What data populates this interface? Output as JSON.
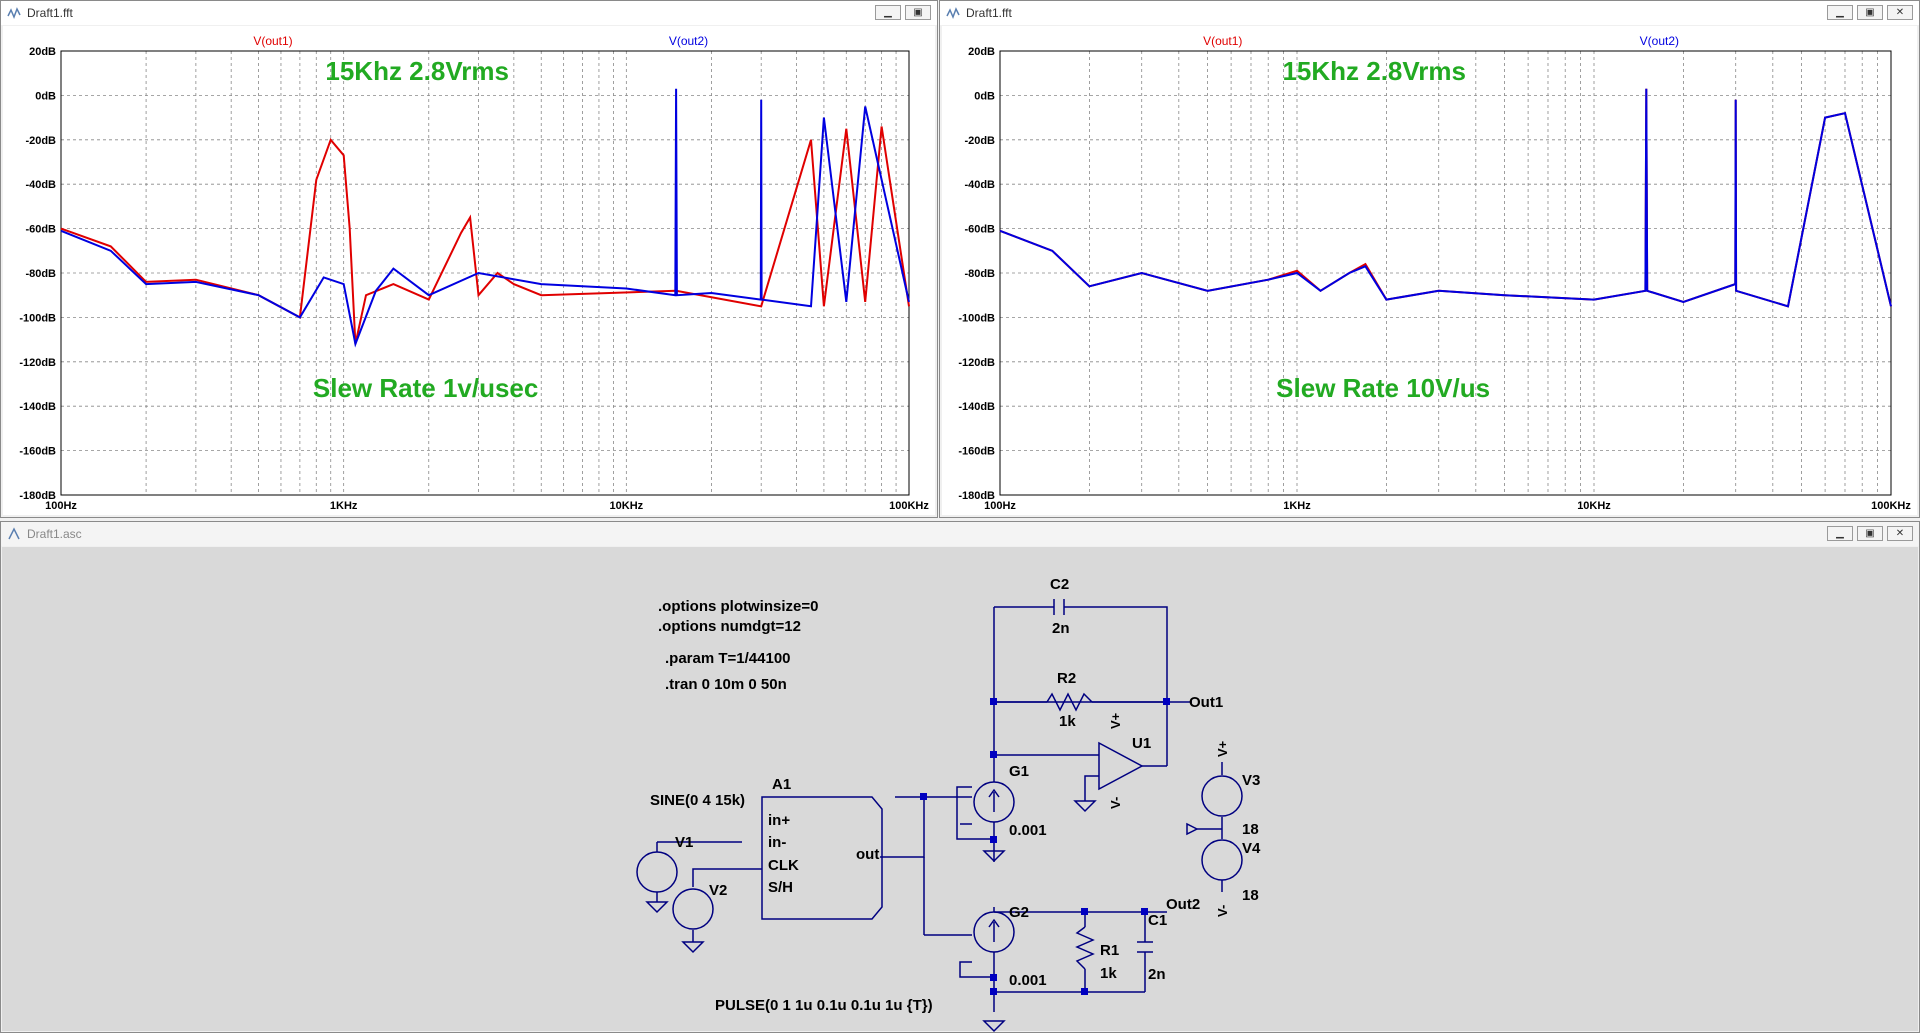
{
  "windows": {
    "fft1": {
      "title": "Draft1.fft"
    },
    "fft2": {
      "title": "Draft1.fft"
    },
    "schematic": {
      "title": "Draft1.asc"
    }
  },
  "window_buttons": {
    "minimize": "▁",
    "restore": "▣",
    "close": "✕"
  },
  "colors": {
    "trace1": "#e00000",
    "trace2": "#0000e0",
    "note": "#22aa22",
    "grid": "#888888",
    "wire": "#0000d0"
  },
  "chart_data": [
    {
      "type": "line",
      "title": "15Khz 2.8Vrms",
      "annotation": "Slew Rate 1v/usec",
      "x_scale": "log",
      "xlim": [
        100,
        100000
      ],
      "ylim": [
        -180,
        20
      ],
      "y_ticks": [
        "20dB",
        "0dB",
        "-20dB",
        "-40dB",
        "-60dB",
        "-80dB",
        "-100dB",
        "-120dB",
        "-140dB",
        "-160dB",
        "-180dB"
      ],
      "x_ticks": [
        "100Hz",
        "1KHz",
        "10KHz",
        "100KHz"
      ],
      "grid": true,
      "series": [
        {
          "name": "V(out1)",
          "color": "#e00000",
          "x": [
            100,
            150,
            200,
            300,
            500,
            700,
            800,
            900,
            1000,
            1050,
            1100,
            1200,
            1500,
            2000,
            2600,
            2800,
            3000,
            3500,
            4000,
            5000,
            15000,
            30000,
            45000,
            50000,
            60000,
            70000,
            80000,
            100000
          ],
          "y": [
            -60,
            -68,
            -84,
            -83,
            -90,
            -100,
            -38,
            -20,
            -27,
            -60,
            -112,
            -90,
            -85,
            -92,
            -62,
            -55,
            -90,
            -80,
            -85,
            -90,
            -88,
            -95,
            -20,
            -95,
            -15,
            -93,
            -14,
            -95
          ]
        },
        {
          "name": "V(out2)",
          "color": "#0000e0",
          "x": [
            100,
            150,
            200,
            300,
            500,
            700,
            850,
            1000,
            1100,
            1300,
            1500,
            2000,
            3000,
            5000,
            10000,
            14900,
            15000,
            15100,
            20000,
            29900,
            30000,
            30100,
            45000,
            50000,
            60000,
            70000,
            100000
          ],
          "y": [
            -61,
            -70,
            -85,
            -84,
            -90,
            -100,
            -82,
            -85,
            -112,
            -88,
            -78,
            -90,
            -80,
            -85,
            -87,
            -90,
            3,
            -90,
            -89,
            -92,
            -2,
            -92,
            -95,
            -10,
            -93,
            -5,
            -93
          ]
        }
      ]
    },
    {
      "type": "line",
      "title": "15Khz 2.8Vrms",
      "annotation": "Slew Rate 10V/us",
      "x_scale": "log",
      "xlim": [
        100,
        100000
      ],
      "ylim": [
        -180,
        20
      ],
      "y_ticks": [
        "20dB",
        "0dB",
        "-20dB",
        "-40dB",
        "-60dB",
        "-80dB",
        "-100dB",
        "-120dB",
        "-140dB",
        "-160dB",
        "-180dB"
      ],
      "x_ticks": [
        "100Hz",
        "1KHz",
        "10KHz",
        "100KHz"
      ],
      "grid": true,
      "series": [
        {
          "name": "V(out1)",
          "color": "#e00000",
          "x": [
            100,
            150,
            200,
            300,
            500,
            800,
            1000,
            1200,
            1500,
            1700,
            2000,
            3000,
            5000,
            10000,
            14900,
            15000,
            15100,
            20000,
            29900,
            30000,
            30100,
            45000,
            60000,
            70000,
            100000
          ],
          "y": [
            -61,
            -70,
            -86,
            -80,
            -88,
            -83,
            -79,
            -88,
            -80,
            -76,
            -92,
            -88,
            -90,
            -92,
            -88,
            3,
            -88,
            -93,
            -85,
            -2,
            -88,
            -95,
            -10,
            -8,
            -95
          ]
        },
        {
          "name": "V(out2)",
          "color": "#0000e0",
          "x": [
            100,
            150,
            200,
            300,
            500,
            800,
            1000,
            1200,
            1500,
            1700,
            2000,
            3000,
            5000,
            10000,
            14900,
            15000,
            15100,
            20000,
            29900,
            30000,
            30100,
            45000,
            60000,
            70000,
            100000
          ],
          "y": [
            -61,
            -70,
            -86,
            -80,
            -88,
            -83,
            -80,
            -88,
            -80,
            -77,
            -92,
            -88,
            -90,
            -92,
            -88,
            3,
            -88,
            -93,
            -85,
            -2,
            -88,
            -95,
            -10,
            -8,
            -95
          ]
        }
      ]
    }
  ],
  "schematic": {
    "directives": [
      ".options plotwinsize=0",
      ".options numdgt=12",
      ".param T=1/44100",
      ".tran 0 10m 0 50n"
    ],
    "components": {
      "c2_name": "C2",
      "c2_value": "2n",
      "r2_name": "R2",
      "r2_value": "1k",
      "u1_name": "U1",
      "g1_name": "G1",
      "g1_value": "0.001",
      "g2_name": "G2",
      "g2_value": "0.001",
      "a1_name": "A1",
      "v1_name": "V1",
      "v1_value": "SINE(0 4 15k)",
      "v2_name": "V2",
      "v2_value": "PULSE(0 1 1u 0.1u 0.1u 1u {T})",
      "v3_name": "V3",
      "v3_value": "18",
      "v4_name": "V4",
      "v4_value": "18",
      "r1_name": "R1",
      "r1_value": "1k",
      "c1_name": "C1",
      "c1_value": "2n"
    },
    "a1_pins": [
      "in+",
      "in-",
      "CLK",
      "S/H"
    ],
    "a1_out": "out",
    "labels": {
      "out1": "Out1",
      "out2": "Out2",
      "vplus": "V+",
      "vminus": "V-"
    }
  }
}
